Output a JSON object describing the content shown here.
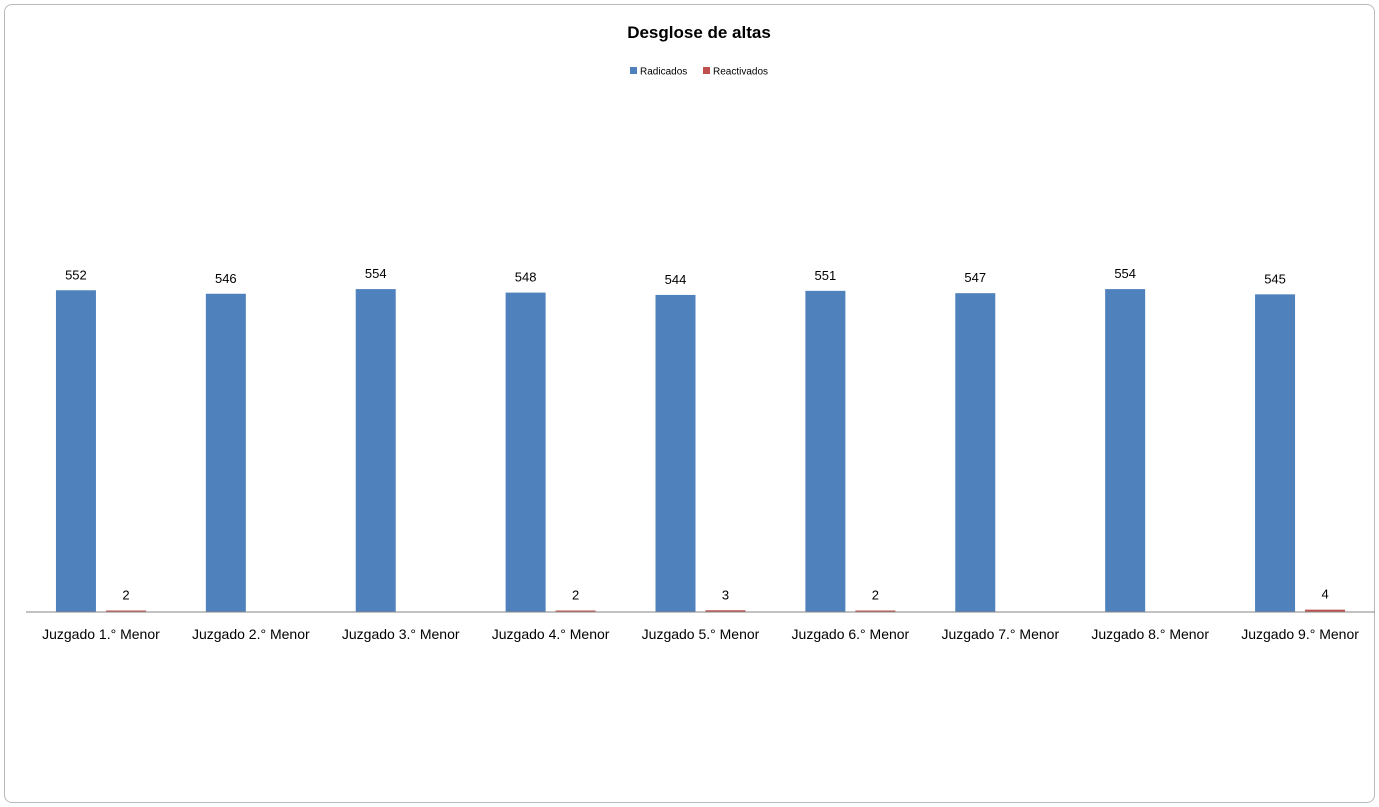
{
  "chart_data": {
    "type": "bar",
    "title": "Desglose de altas",
    "xlabel": "",
    "ylabel": "",
    "ylim": [
      0,
      1050
    ],
    "grid": false,
    "legend_position": "top",
    "categories": [
      "Juzgado 1.° Menor",
      "Juzgado 2.° Menor",
      "Juzgado 3.° Menor",
      "Juzgado 4.° Menor",
      "Juzgado 5.° Menor",
      "Juzgado 6.° Menor",
      "Juzgado 7.° Menor",
      "Juzgado 8.° Menor",
      "Juzgado 9.° Menor"
    ],
    "series": [
      {
        "name": "Radicados",
        "color": "#4f81bd",
        "values": [
          552,
          546,
          554,
          548,
          544,
          551,
          547,
          554,
          545
        ]
      },
      {
        "name": "Reactivados",
        "color": "#c0504d",
        "values": [
          2,
          null,
          null,
          2,
          3,
          2,
          null,
          null,
          4
        ]
      }
    ]
  }
}
